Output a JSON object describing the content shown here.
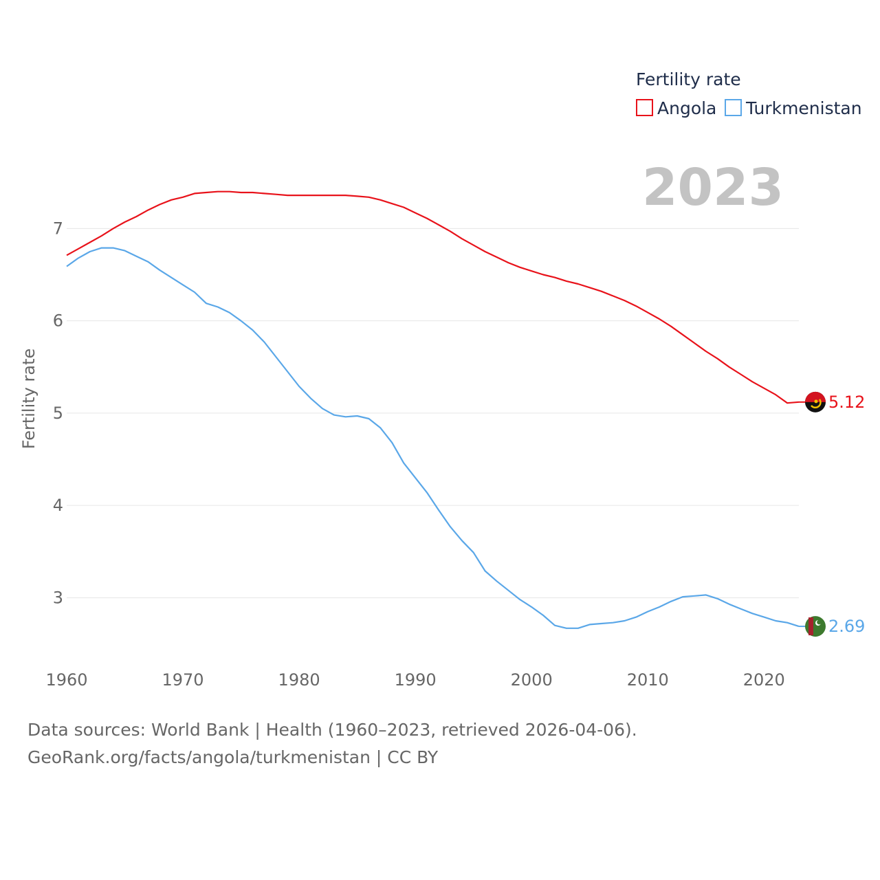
{
  "chart_data": {
    "type": "line",
    "title": "Fertility rate",
    "year_label": "2023",
    "ylabel": "Fertility rate",
    "xlabel": "",
    "xlim": [
      1960,
      2023
    ],
    "ylim": [
      2.4,
      7.8
    ],
    "xticks": [
      1960,
      1970,
      1980,
      1990,
      2000,
      2010,
      2020
    ],
    "yticks": [
      3,
      4,
      5,
      6,
      7
    ],
    "legend_position": "top-right",
    "series": [
      {
        "name": "Angola",
        "color": "#e8121a",
        "end_label": "5.12",
        "flag": "angola-flag",
        "points": [
          [
            1960,
            6.71
          ],
          [
            1961,
            6.78
          ],
          [
            1962,
            6.85
          ],
          [
            1963,
            6.92
          ],
          [
            1964,
            7.0
          ],
          [
            1965,
            7.07
          ],
          [
            1966,
            7.13
          ],
          [
            1967,
            7.2
          ],
          [
            1968,
            7.26
          ],
          [
            1969,
            7.31
          ],
          [
            1970,
            7.34
          ],
          [
            1971,
            7.38
          ],
          [
            1972,
            7.39
          ],
          [
            1973,
            7.4
          ],
          [
            1974,
            7.4
          ],
          [
            1975,
            7.39
          ],
          [
            1976,
            7.39
          ],
          [
            1977,
            7.38
          ],
          [
            1978,
            7.37
          ],
          [
            1979,
            7.36
          ],
          [
            1980,
            7.36
          ],
          [
            1981,
            7.36
          ],
          [
            1982,
            7.36
          ],
          [
            1983,
            7.36
          ],
          [
            1984,
            7.36
          ],
          [
            1985,
            7.35
          ],
          [
            1986,
            7.34
          ],
          [
            1987,
            7.31
          ],
          [
            1988,
            7.27
          ],
          [
            1989,
            7.23
          ],
          [
            1990,
            7.17
          ],
          [
            1991,
            7.11
          ],
          [
            1992,
            7.04
          ],
          [
            1993,
            6.97
          ],
          [
            1994,
            6.89
          ],
          [
            1995,
            6.82
          ],
          [
            1996,
            6.75
          ],
          [
            1997,
            6.69
          ],
          [
            1998,
            6.63
          ],
          [
            1999,
            6.58
          ],
          [
            2000,
            6.54
          ],
          [
            2001,
            6.5
          ],
          [
            2002,
            6.47
          ],
          [
            2003,
            6.43
          ],
          [
            2004,
            6.4
          ],
          [
            2005,
            6.36
          ],
          [
            2006,
            6.32
          ],
          [
            2007,
            6.27
          ],
          [
            2008,
            6.22
          ],
          [
            2009,
            6.16
          ],
          [
            2010,
            6.09
          ],
          [
            2011,
            6.02
          ],
          [
            2012,
            5.94
          ],
          [
            2013,
            5.85
          ],
          [
            2014,
            5.76
          ],
          [
            2015,
            5.67
          ],
          [
            2016,
            5.59
          ],
          [
            2017,
            5.5
          ],
          [
            2018,
            5.42
          ],
          [
            2019,
            5.34
          ],
          [
            2020,
            5.27
          ],
          [
            2021,
            5.2
          ],
          [
            2022,
            5.11
          ],
          [
            2023,
            5.12
          ]
        ]
      },
      {
        "name": "Turkmenistan",
        "color": "#5aa7e8",
        "end_label": "2.69",
        "flag": "turkmenistan-flag",
        "points": [
          [
            1960,
            6.59
          ],
          [
            1961,
            6.68
          ],
          [
            1962,
            6.75
          ],
          [
            1963,
            6.79
          ],
          [
            1964,
            6.79
          ],
          [
            1965,
            6.76
          ],
          [
            1966,
            6.7
          ],
          [
            1967,
            6.64
          ],
          [
            1968,
            6.55
          ],
          [
            1969,
            6.47
          ],
          [
            1970,
            6.39
          ],
          [
            1971,
            6.31
          ],
          [
            1972,
            6.19
          ],
          [
            1973,
            6.15
          ],
          [
            1974,
            6.09
          ],
          [
            1975,
            6.0
          ],
          [
            1976,
            5.9
          ],
          [
            1977,
            5.77
          ],
          [
            1978,
            5.61
          ],
          [
            1979,
            5.45
          ],
          [
            1980,
            5.29
          ],
          [
            1981,
            5.16
          ],
          [
            1982,
            5.05
          ],
          [
            1983,
            4.98
          ],
          [
            1984,
            4.96
          ],
          [
            1985,
            4.97
          ],
          [
            1986,
            4.94
          ],
          [
            1987,
            4.84
          ],
          [
            1988,
            4.68
          ],
          [
            1989,
            4.46
          ],
          [
            1990,
            4.3
          ],
          [
            1991,
            4.14
          ],
          [
            1992,
            3.95
          ],
          [
            1993,
            3.77
          ],
          [
            1994,
            3.62
          ],
          [
            1995,
            3.49
          ],
          [
            1996,
            3.29
          ],
          [
            1997,
            3.18
          ],
          [
            1998,
            3.08
          ],
          [
            1999,
            2.98
          ],
          [
            2000,
            2.9
          ],
          [
            2001,
            2.81
          ],
          [
            2002,
            2.7
          ],
          [
            2003,
            2.67
          ],
          [
            2004,
            2.67
          ],
          [
            2005,
            2.71
          ],
          [
            2006,
            2.72
          ],
          [
            2007,
            2.73
          ],
          [
            2008,
            2.75
          ],
          [
            2009,
            2.79
          ],
          [
            2010,
            2.85
          ],
          [
            2011,
            2.9
          ],
          [
            2012,
            2.96
          ],
          [
            2013,
            3.01
          ],
          [
            2014,
            3.02
          ],
          [
            2015,
            3.03
          ],
          [
            2016,
            2.99
          ],
          [
            2017,
            2.93
          ],
          [
            2018,
            2.88
          ],
          [
            2019,
            2.83
          ],
          [
            2020,
            2.79
          ],
          [
            2021,
            2.75
          ],
          [
            2022,
            2.73
          ],
          [
            2023,
            2.69
          ]
        ]
      }
    ]
  },
  "footer": {
    "source_line": "Data sources: World Bank | Health (1960–2023, retrieved 2026-04-06).",
    "url_line": "GeoRank.org/facts/angola/turkmenistan | CC BY"
  }
}
